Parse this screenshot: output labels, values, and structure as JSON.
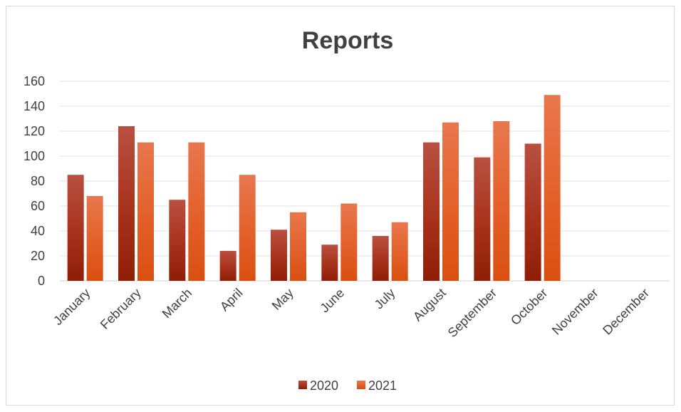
{
  "chart_data": {
    "type": "bar",
    "title": "Reports",
    "categories": [
      "January",
      "February",
      "March",
      "April",
      "May",
      "June",
      "July",
      "August",
      "September",
      "October",
      "November",
      "December"
    ],
    "series": [
      {
        "name": "2020",
        "values": [
          85,
          124,
          65,
          24,
          41,
          29,
          36,
          111,
          99,
          110,
          null,
          null
        ],
        "color": "#b23a20"
      },
      {
        "name": "2021",
        "values": [
          68,
          111,
          111,
          85,
          55,
          62,
          47,
          127,
          128,
          149,
          null,
          null
        ],
        "color": "#e0602a"
      }
    ],
    "ylim": [
      0,
      160
    ],
    "yticks": [
      0,
      20,
      40,
      60,
      80,
      100,
      120,
      140,
      160
    ],
    "grid": true,
    "legend_position": "bottom",
    "xlabel": "",
    "ylabel": ""
  }
}
